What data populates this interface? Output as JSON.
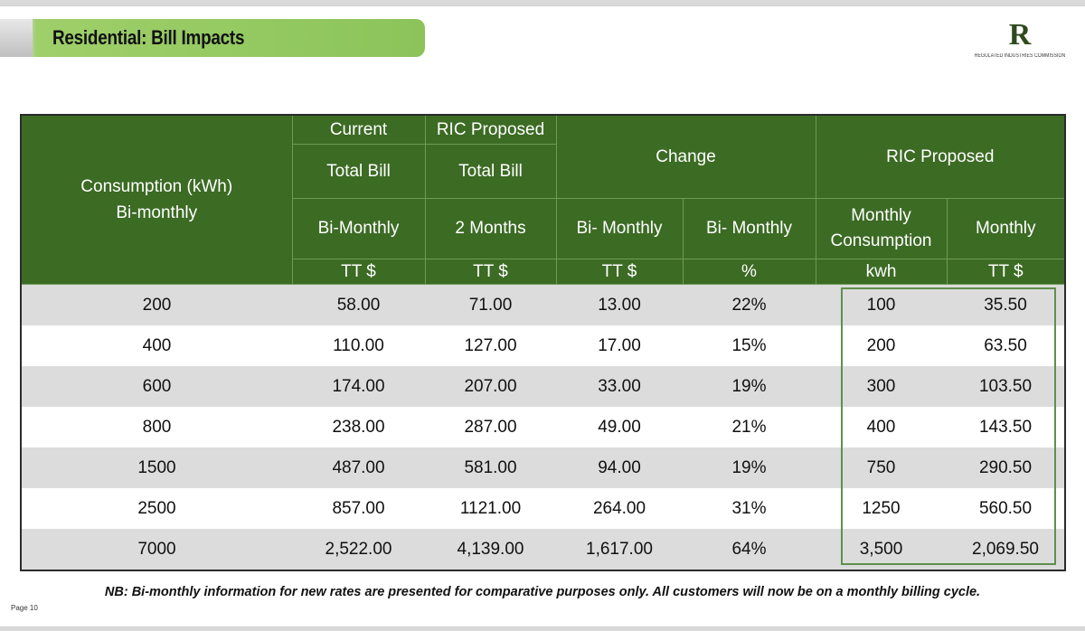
{
  "header": {
    "title": "Residential: Bill Impacts",
    "logo_mark": "R",
    "logo_text": "REGULATED INDUSTRIES COMMISSION"
  },
  "table": {
    "headers": {
      "consumption": "Consumption (kWh)",
      "consumption_sub": "Bi-monthly",
      "current": "Current",
      "current_total": "Total Bill",
      "current_period": "Bi-Monthly",
      "current_unit": "TT $",
      "ric": "RIC Proposed",
      "ric_total": "Total Bill",
      "ric_period": "2 Months",
      "ric_unit": "TT $",
      "change": "Change",
      "change_period1": "Bi- Monthly",
      "change_unit1": "TT $",
      "change_period2": "Bi- Monthly",
      "change_unit2": "%",
      "ric_proposed": "RIC  Proposed",
      "monthly_consumption": "Monthly Consumption",
      "monthly_consumption_unit": "kwh",
      "monthly": "Monthly",
      "monthly_unit": "TT $"
    },
    "rows": [
      [
        "200",
        "58.00",
        "71.00",
        "13.00",
        "22%",
        "100",
        "35.50"
      ],
      [
        "400",
        "110.00",
        "127.00",
        "17.00",
        "15%",
        "200",
        "63.50"
      ],
      [
        "600",
        "174.00",
        "207.00",
        "33.00",
        "19%",
        "300",
        "103.50"
      ],
      [
        "800",
        "238.00",
        "287.00",
        "49.00",
        "21%",
        "400",
        "143.50"
      ],
      [
        "1500",
        "487.00",
        "581.00",
        "94.00",
        "19%",
        "750",
        "290.50"
      ],
      [
        "2500",
        "857.00",
        "1121.00",
        "264.00",
        "31%",
        "1250",
        "560.50"
      ],
      [
        "7000",
        "2,522.00",
        "4,139.00",
        "1,617.00",
        "64%",
        "3,500",
        "2,069.50"
      ]
    ]
  },
  "note": "NB:  Bi-monthly information for new rates are presented for comparative purposes only. All customers will now be on a monthly billing cycle.",
  "page_number": "Page 10",
  "colors": {
    "header_green": "#3c6b24",
    "title_green": "#8cc45a",
    "row_grey": "#dcdcdc"
  }
}
